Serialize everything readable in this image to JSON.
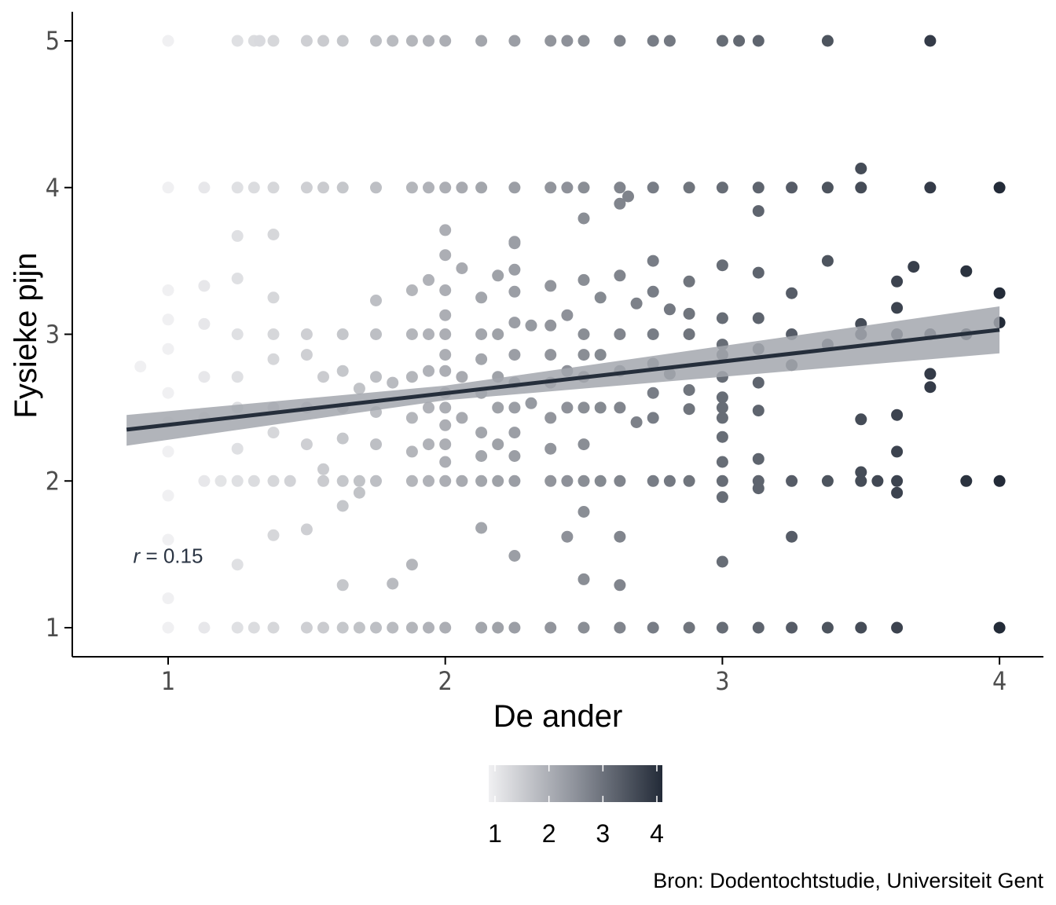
{
  "chart_data": {
    "type": "scatter",
    "xlabel": "De ander",
    "ylabel": "Fysieke pijn",
    "xlim": [
      0.65,
      4.15
    ],
    "ylim": [
      0.8,
      5.2
    ],
    "x_ticks": [
      "1",
      "2",
      "3",
      "4"
    ],
    "y_ticks": [
      "1",
      "2",
      "3",
      "4",
      "5"
    ],
    "grid": false,
    "points": [
      [
        1.0,
        5.0
      ],
      [
        1.25,
        5.0
      ],
      [
        1.31,
        5.0
      ],
      [
        1.33,
        5.0
      ],
      [
        1.38,
        5.0
      ],
      [
        1.5,
        5.0
      ],
      [
        1.56,
        5.0
      ],
      [
        1.63,
        5.0
      ],
      [
        1.75,
        5.0
      ],
      [
        1.81,
        5.0
      ],
      [
        1.88,
        5.0
      ],
      [
        1.94,
        5.0
      ],
      [
        2.0,
        5.0
      ],
      [
        2.13,
        5.0
      ],
      [
        2.25,
        5.0
      ],
      [
        2.38,
        5.0
      ],
      [
        2.44,
        5.0
      ],
      [
        2.5,
        5.0
      ],
      [
        2.63,
        5.0
      ],
      [
        2.75,
        5.0
      ],
      [
        2.81,
        5.0
      ],
      [
        3.0,
        5.0
      ],
      [
        3.06,
        5.0
      ],
      [
        3.13,
        5.0
      ],
      [
        3.38,
        5.0
      ],
      [
        3.75,
        5.0
      ],
      [
        1.0,
        4.0
      ],
      [
        1.13,
        4.0
      ],
      [
        1.25,
        4.0
      ],
      [
        1.31,
        4.0
      ],
      [
        1.38,
        4.0
      ],
      [
        1.5,
        4.0
      ],
      [
        1.56,
        4.0
      ],
      [
        1.63,
        4.0
      ],
      [
        1.75,
        4.0
      ],
      [
        1.88,
        4.0
      ],
      [
        1.94,
        4.0
      ],
      [
        2.0,
        4.0
      ],
      [
        2.06,
        4.0
      ],
      [
        2.13,
        4.0
      ],
      [
        2.25,
        4.0
      ],
      [
        2.38,
        4.0
      ],
      [
        2.44,
        4.0
      ],
      [
        2.5,
        4.0
      ],
      [
        2.63,
        4.0
      ],
      [
        2.75,
        4.0
      ],
      [
        2.88,
        4.0
      ],
      [
        3.0,
        4.0
      ],
      [
        3.13,
        4.0
      ],
      [
        3.25,
        4.0
      ],
      [
        3.38,
        4.0
      ],
      [
        3.5,
        4.0
      ],
      [
        3.75,
        4.0
      ],
      [
        4.0,
        4.0
      ],
      [
        1.25,
        3.67
      ],
      [
        1.38,
        3.68
      ],
      [
        2.0,
        3.71
      ],
      [
        2.25,
        3.63
      ],
      [
        2.5,
        3.79
      ],
      [
        2.63,
        3.89
      ],
      [
        2.66,
        3.94
      ],
      [
        3.13,
        3.84
      ],
      [
        3.5,
        4.13
      ],
      [
        1.0,
        3.3
      ],
      [
        1.0,
        3.1
      ],
      [
        1.0,
        2.9
      ],
      [
        1.0,
        2.6
      ],
      [
        1.0,
        2.4
      ],
      [
        1.0,
        2.2
      ],
      [
        1.0,
        1.9
      ],
      [
        1.0,
        1.6
      ],
      [
        1.0,
        1.2
      ],
      [
        0.9,
        2.78
      ],
      [
        1.13,
        3.33
      ],
      [
        1.13,
        3.07
      ],
      [
        1.13,
        2.71
      ],
      [
        1.13,
        2.43
      ],
      [
        1.25,
        3.38
      ],
      [
        1.25,
        3.0
      ],
      [
        1.25,
        2.71
      ],
      [
        1.25,
        2.5
      ],
      [
        1.25,
        2.22
      ],
      [
        1.25,
        1.43
      ],
      [
        1.38,
        3.25
      ],
      [
        1.38,
        3.0
      ],
      [
        1.38,
        2.83
      ],
      [
        1.38,
        2.5
      ],
      [
        1.38,
        2.33
      ],
      [
        1.38,
        1.63
      ],
      [
        1.5,
        3.0
      ],
      [
        1.5,
        2.86
      ],
      [
        1.5,
        2.5
      ],
      [
        1.5,
        2.25
      ],
      [
        1.5,
        1.67
      ],
      [
        1.56,
        2.71
      ],
      [
        1.56,
        2.08
      ],
      [
        1.63,
        3.0
      ],
      [
        1.63,
        2.75
      ],
      [
        1.63,
        2.5
      ],
      [
        1.63,
        2.29
      ],
      [
        1.63,
        1.83
      ],
      [
        1.63,
        1.29
      ],
      [
        1.69,
        2.63
      ],
      [
        1.69,
        1.92
      ],
      [
        1.75,
        3.0
      ],
      [
        1.75,
        2.71
      ],
      [
        1.75,
        2.47
      ],
      [
        1.75,
        2.25
      ],
      [
        1.75,
        3.23
      ],
      [
        1.81,
        2.67
      ],
      [
        1.81,
        1.3
      ],
      [
        1.88,
        3.3
      ],
      [
        1.88,
        3.0
      ],
      [
        1.88,
        2.71
      ],
      [
        1.88,
        2.43
      ],
      [
        1.88,
        2.2
      ],
      [
        1.88,
        1.43
      ],
      [
        1.94,
        3.37
      ],
      [
        1.94,
        3.0
      ],
      [
        1.94,
        2.75
      ],
      [
        1.94,
        2.5
      ],
      [
        1.94,
        2.25
      ],
      [
        2.0,
        3.54
      ],
      [
        2.0,
        3.3
      ],
      [
        2.0,
        3.13
      ],
      [
        2.0,
        3.0
      ],
      [
        2.0,
        2.86
      ],
      [
        2.0,
        2.75
      ],
      [
        2.0,
        2.6
      ],
      [
        2.0,
        2.5
      ],
      [
        2.0,
        2.38
      ],
      [
        2.0,
        2.25
      ],
      [
        2.0,
        2.13
      ],
      [
        2.06,
        3.45
      ],
      [
        2.06,
        2.71
      ],
      [
        2.06,
        2.43
      ],
      [
        2.13,
        3.25
      ],
      [
        2.13,
        3.0
      ],
      [
        2.13,
        2.83
      ],
      [
        2.13,
        2.6
      ],
      [
        2.13,
        2.33
      ],
      [
        2.13,
        2.17
      ],
      [
        2.13,
        1.68
      ],
      [
        2.19,
        3.4
      ],
      [
        2.19,
        3.0
      ],
      [
        2.19,
        2.71
      ],
      [
        2.19,
        2.5
      ],
      [
        2.19,
        2.25
      ],
      [
        2.25,
        3.62
      ],
      [
        2.25,
        3.44
      ],
      [
        2.25,
        3.29
      ],
      [
        2.25,
        3.08
      ],
      [
        2.25,
        2.86
      ],
      [
        2.25,
        2.67
      ],
      [
        2.25,
        2.5
      ],
      [
        2.25,
        2.33
      ],
      [
        2.25,
        2.17
      ],
      [
        2.25,
        1.49
      ],
      [
        2.31,
        3.06
      ],
      [
        2.31,
        2.53
      ],
      [
        2.38,
        3.33
      ],
      [
        2.38,
        3.06
      ],
      [
        2.38,
        2.86
      ],
      [
        2.38,
        2.67
      ],
      [
        2.38,
        2.43
      ],
      [
        2.38,
        2.22
      ],
      [
        2.44,
        3.13
      ],
      [
        2.44,
        2.75
      ],
      [
        2.44,
        2.5
      ],
      [
        2.44,
        1.62
      ],
      [
        2.5,
        3.37
      ],
      [
        2.5,
        3.0
      ],
      [
        2.5,
        2.86
      ],
      [
        2.5,
        2.71
      ],
      [
        2.5,
        2.5
      ],
      [
        2.5,
        2.25
      ],
      [
        2.5,
        1.79
      ],
      [
        2.5,
        1.33
      ],
      [
        2.56,
        3.25
      ],
      [
        2.56,
        2.86
      ],
      [
        2.56,
        2.5
      ],
      [
        2.63,
        3.4
      ],
      [
        2.63,
        3.0
      ],
      [
        2.63,
        2.75
      ],
      [
        2.63,
        2.5
      ],
      [
        2.63,
        1.62
      ],
      [
        2.63,
        1.29
      ],
      [
        2.69,
        3.21
      ],
      [
        2.69,
        2.4
      ],
      [
        2.75,
        3.5
      ],
      [
        2.75,
        3.29
      ],
      [
        2.75,
        3.0
      ],
      [
        2.75,
        2.8
      ],
      [
        2.75,
        2.6
      ],
      [
        2.75,
        2.43
      ],
      [
        2.81,
        3.17
      ],
      [
        2.81,
        2.73
      ],
      [
        2.88,
        3.36
      ],
      [
        2.88,
        3.14
      ],
      [
        2.88,
        3.0
      ],
      [
        2.88,
        2.62
      ],
      [
        2.88,
        2.49
      ],
      [
        3.0,
        3.47
      ],
      [
        3.0,
        3.11
      ],
      [
        3.0,
        2.93
      ],
      [
        3.0,
        2.86
      ],
      [
        3.0,
        2.71
      ],
      [
        3.0,
        2.57
      ],
      [
        3.0,
        2.5
      ],
      [
        3.0,
        2.43
      ],
      [
        3.0,
        2.3
      ],
      [
        3.0,
        2.13
      ],
      [
        3.0,
        1.89
      ],
      [
        3.0,
        1.45
      ],
      [
        3.13,
        3.42
      ],
      [
        3.13,
        3.11
      ],
      [
        3.13,
        2.9
      ],
      [
        3.13,
        2.67
      ],
      [
        3.13,
        2.48
      ],
      [
        3.13,
        2.15
      ],
      [
        3.13,
        1.95
      ],
      [
        3.25,
        3.28
      ],
      [
        3.25,
        3.0
      ],
      [
        3.25,
        2.79
      ],
      [
        3.25,
        1.62
      ],
      [
        3.38,
        3.5
      ],
      [
        3.38,
        2.93
      ],
      [
        3.5,
        3.07
      ],
      [
        3.5,
        3.0
      ],
      [
        3.5,
        2.42
      ],
      [
        3.5,
        2.06
      ],
      [
        3.56,
        2.0
      ],
      [
        3.63,
        3.36
      ],
      [
        3.63,
        3.18
      ],
      [
        3.63,
        3.0
      ],
      [
        3.63,
        2.45
      ],
      [
        3.63,
        2.2
      ],
      [
        3.63,
        1.92
      ],
      [
        3.69,
        3.46
      ],
      [
        3.75,
        3.0
      ],
      [
        3.75,
        2.73
      ],
      [
        3.75,
        2.64
      ],
      [
        3.88,
        3.43
      ],
      [
        3.88,
        3.0
      ],
      [
        4.0,
        3.28
      ],
      [
        4.0,
        3.08
      ],
      [
        1.13,
        2.0
      ],
      [
        1.19,
        2.0
      ],
      [
        1.25,
        2.0
      ],
      [
        1.31,
        2.0
      ],
      [
        1.38,
        2.0
      ],
      [
        1.44,
        2.0
      ],
      [
        1.56,
        2.0
      ],
      [
        1.63,
        2.0
      ],
      [
        1.69,
        2.0
      ],
      [
        1.75,
        2.0
      ],
      [
        1.88,
        2.0
      ],
      [
        1.94,
        2.0
      ],
      [
        2.0,
        2.0
      ],
      [
        2.06,
        2.0
      ],
      [
        2.13,
        2.0
      ],
      [
        2.19,
        2.0
      ],
      [
        2.25,
        2.0
      ],
      [
        2.38,
        2.0
      ],
      [
        2.44,
        2.0
      ],
      [
        2.5,
        2.0
      ],
      [
        2.56,
        2.0
      ],
      [
        2.63,
        2.0
      ],
      [
        2.75,
        2.0
      ],
      [
        2.81,
        2.0
      ],
      [
        2.88,
        2.0
      ],
      [
        3.0,
        2.0
      ],
      [
        3.13,
        2.0
      ],
      [
        3.25,
        2.0
      ],
      [
        3.38,
        2.0
      ],
      [
        3.5,
        2.0
      ],
      [
        3.63,
        2.0
      ],
      [
        3.88,
        2.0
      ],
      [
        4.0,
        2.0
      ],
      [
        1.0,
        1.0
      ],
      [
        1.13,
        1.0
      ],
      [
        1.25,
        1.0
      ],
      [
        1.31,
        1.0
      ],
      [
        1.38,
        1.0
      ],
      [
        1.5,
        1.0
      ],
      [
        1.56,
        1.0
      ],
      [
        1.63,
        1.0
      ],
      [
        1.69,
        1.0
      ],
      [
        1.75,
        1.0
      ],
      [
        1.81,
        1.0
      ],
      [
        1.88,
        1.0
      ],
      [
        1.94,
        1.0
      ],
      [
        2.0,
        1.0
      ],
      [
        2.13,
        1.0
      ],
      [
        2.19,
        1.0
      ],
      [
        2.25,
        1.0
      ],
      [
        2.38,
        1.0
      ],
      [
        2.5,
        1.0
      ],
      [
        2.63,
        1.0
      ],
      [
        2.75,
        1.0
      ],
      [
        2.88,
        1.0
      ],
      [
        3.0,
        1.0
      ],
      [
        3.13,
        1.0
      ],
      [
        3.25,
        1.0
      ],
      [
        3.38,
        1.0
      ],
      [
        3.5,
        1.0
      ],
      [
        3.63,
        1.0
      ],
      [
        4.0,
        1.0
      ]
    ],
    "trend_line": {
      "x": [
        0.85,
        4.0
      ],
      "y": [
        2.35,
        3.03
      ]
    },
    "confidence_band": {
      "x": [
        0.85,
        2.0,
        4.0
      ],
      "upper": [
        2.45,
        2.65,
        3.19
      ],
      "lower": [
        2.24,
        2.55,
        2.87
      ]
    },
    "colorscale": {
      "min": 1,
      "max": 4,
      "low_color": "#f0f0f2",
      "high_color": "#232b38",
      "ticks": [
        "1",
        "2",
        "3",
        "4"
      ]
    },
    "band_color": "#a3a7ae",
    "line_color": "#252e3b",
    "annotation": {
      "x": 1.0,
      "y": 1.49,
      "italic": "r",
      "rest": " = 0.15"
    },
    "caption": "Bron: Dodentochtstudie, Universiteit Gent"
  }
}
